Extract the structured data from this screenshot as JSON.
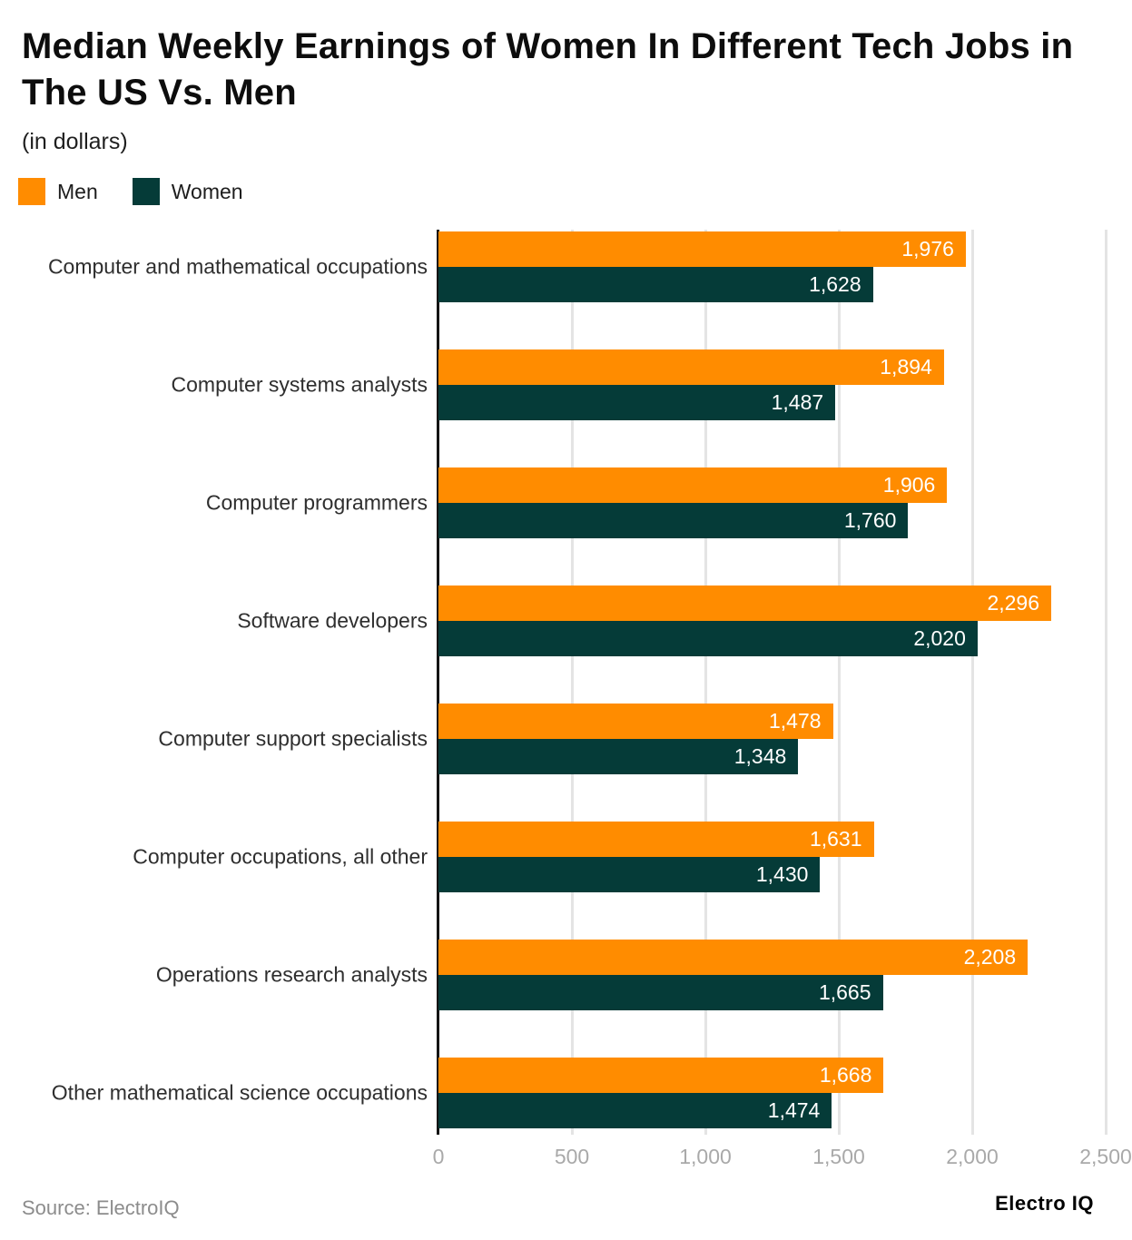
{
  "header": {
    "title": "Median Weekly Earnings of Women In Different Tech Jobs in The US Vs. Men",
    "subtitle": "(in dollars)"
  },
  "chart_data": {
    "type": "bar",
    "orientation": "horizontal",
    "title": "Median Weekly Earnings of Women In Different Tech Jobs in The US Vs. Men",
    "subtitle": "(in dollars)",
    "categories": [
      "Computer and mathematical occupations",
      "Computer systems analysts",
      "Computer programmers",
      "Software developers",
      "Computer support specialists",
      "Computer occupations, all other",
      "Operations research analysts",
      "Other mathematical science occupations"
    ],
    "series": [
      {
        "name": "Men",
        "color": "#FF8C00",
        "values": [
          1976,
          1894,
          1906,
          2296,
          1478,
          1631,
          2208,
          1668
        ]
      },
      {
        "name": "Women",
        "color": "#053B38",
        "values": [
          1628,
          1487,
          1760,
          2020,
          1348,
          1430,
          1665,
          1474
        ]
      }
    ],
    "xlim": [
      0,
      2500
    ],
    "xticks": [
      0,
      500,
      1000,
      1500,
      2000,
      2500
    ],
    "xtick_labels": [
      "0",
      "500",
      "1,000",
      "1,500",
      "2,000",
      "2,500"
    ],
    "grid": "vertical-gridlines-on",
    "legend_position": "top-left",
    "value_labels": "inside-end-white"
  },
  "colors": {
    "men": "#FF8C00",
    "women": "#053B38",
    "gridline": "#e4e4e4",
    "axis_line": "#141414",
    "tick_text": "#a9a9a9",
    "background": "#ffffff"
  },
  "footer": {
    "source": "Source: ElectroIQ",
    "brand": "Electro IQ"
  }
}
